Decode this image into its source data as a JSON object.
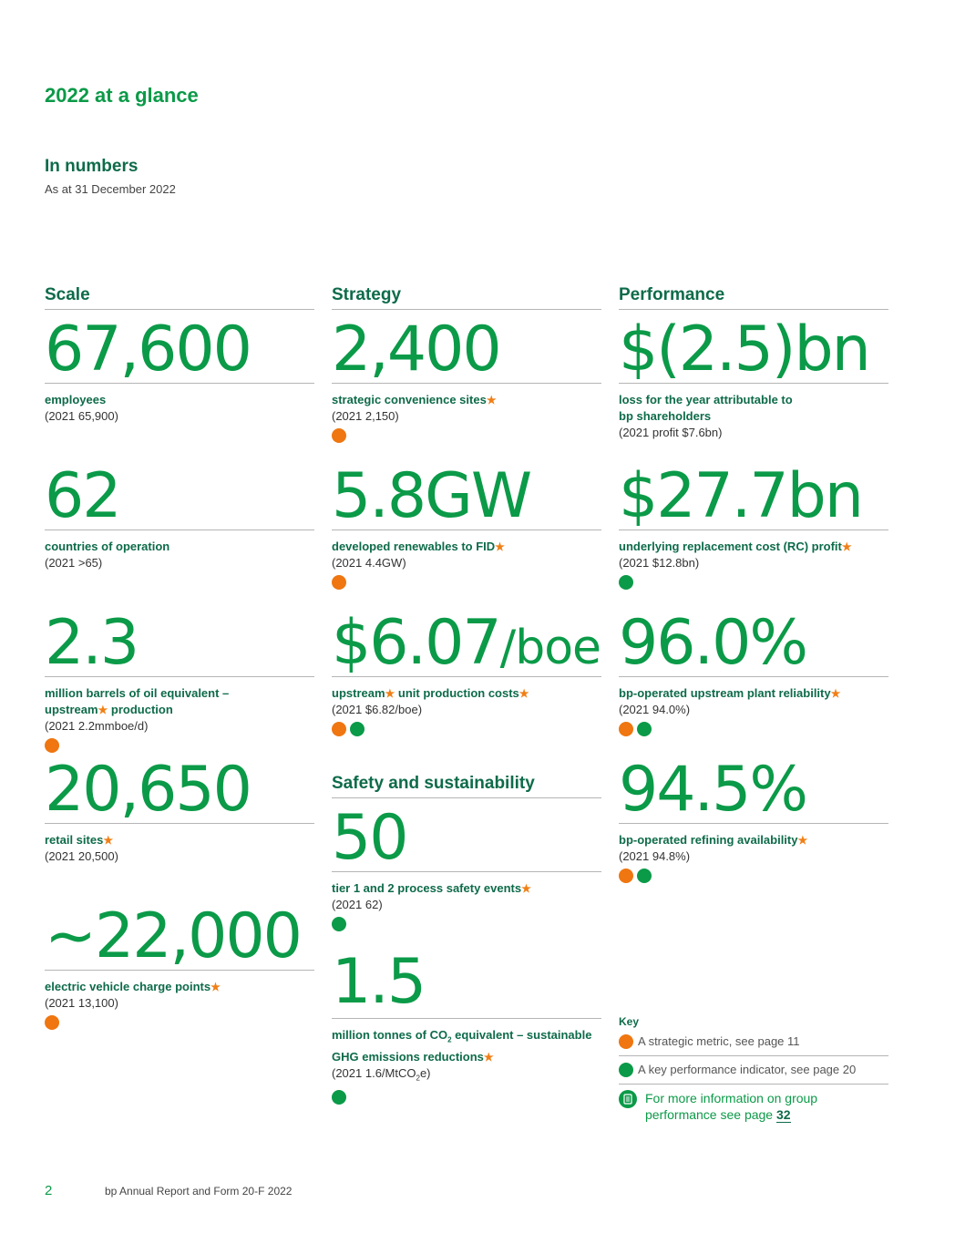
{
  "page": {
    "title": "2022 at a glance",
    "section_title": "In numbers",
    "section_subtitle": "As at 31 December 2022"
  },
  "columns": {
    "scale": "Scale",
    "strategy": "Strategy",
    "performance": "Performance",
    "safety": "Safety and sustainability"
  },
  "scale": {
    "employees": {
      "value": "67,600",
      "label": "employees",
      "prior": "(2021 65,900)"
    },
    "countries": {
      "value": "62",
      "label": "countries of operation",
      "prior": "(2021 >65)"
    },
    "production": {
      "value": "2.3",
      "label_a": "million barrels of oil equivalent –",
      "label_b": "upstream",
      "label_c": " production",
      "prior": "(2021 2.2mmboe/d)"
    },
    "retail": {
      "value": "20,650",
      "label": "retail sites",
      "prior": "(2021 20,500)"
    },
    "ev": {
      "value": "~22,000",
      "label": "electric vehicle charge points",
      "prior": "(2021 13,100)"
    }
  },
  "strategy": {
    "convenience": {
      "value": "2,400",
      "label": "strategic convenience sites",
      "prior": "(2021 2,150)"
    },
    "renewables": {
      "value": "5.8GW",
      "label": "developed renewables to FID",
      "prior": "(2021 4.4GW)"
    },
    "unit_cost": {
      "value": "$6.07",
      "unit": "/boe",
      "label_a": "upstream",
      "label_b": " unit production costs",
      "prior": "(2021 $6.82/boe)"
    }
  },
  "performance": {
    "loss": {
      "value": "$(2.5)bn",
      "label_a": "loss for the year attributable to",
      "label_b": "bp shareholders",
      "prior": "(2021 profit $7.6bn)"
    },
    "rc_profit": {
      "value": "$27.7bn",
      "label": "underlying replacement cost (RC) profit",
      "prior": "(2021 $12.8bn)"
    },
    "reliability": {
      "value": "96.0%",
      "label": "bp-operated upstream plant reliability",
      "prior": "(2021 94.0%)"
    },
    "refining": {
      "value": "94.5%",
      "label": "bp-operated refining availability",
      "prior": "(2021 94.8%)"
    }
  },
  "safety": {
    "events": {
      "value": "50",
      "label": "tier 1 and 2 process safety events",
      "prior": "(2021 62)"
    },
    "ghg": {
      "value": "1.5",
      "label_a": "million tonnes of CO",
      "label_sub": "2",
      "label_b": " equivalent – sustainable",
      "label_c": "GHG emissions reductions",
      "prior_a": "(2021 1.6/MtCO",
      "prior_sub": "2",
      "prior_b": "e)"
    }
  },
  "key": {
    "title": "Key",
    "strategic": "A strategic metric, see page 11",
    "kpi": "A key performance indicator, see page 20",
    "info_a": "For more information on group",
    "info_b": "performance see page ",
    "info_page": "32"
  },
  "footer": {
    "page_number": "2",
    "publication": "bp Annual Report and Form 20-F 2022"
  },
  "colors": {
    "brand_green": "#0b9a48",
    "dark_teal": "#0e6b4a",
    "strategic_orange": "#ef7610"
  },
  "icons": {
    "star": "★",
    "info": "document-icon"
  }
}
